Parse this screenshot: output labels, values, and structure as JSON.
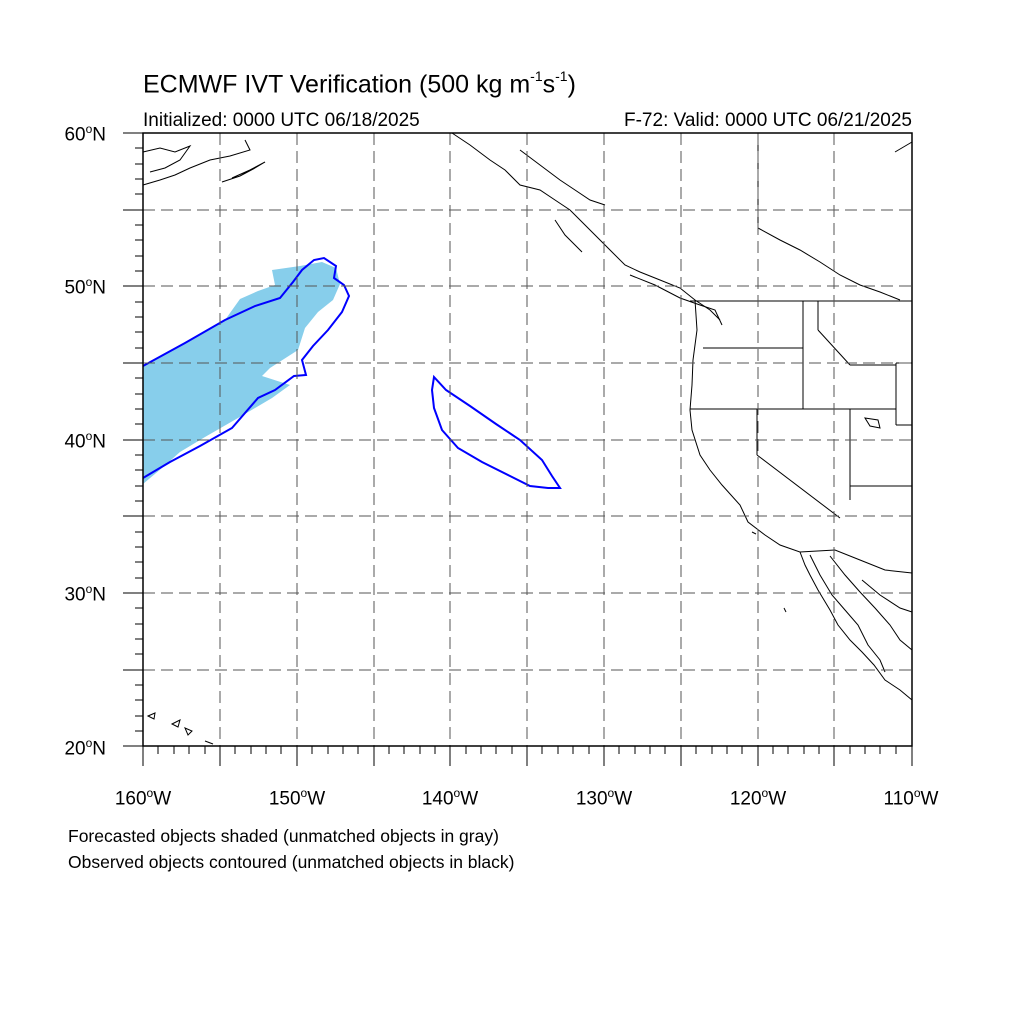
{
  "title": {
    "prefix": "ECMWF IVT Verification (500 kg m",
    "exp1": "-1",
    "mid": "s",
    "exp2": "-1",
    "suffix": ")"
  },
  "initialized": "Initialized: 0000 UTC 06/18/2025",
  "valid": "F-72: Valid: 0000 UTC 06/21/2025",
  "map": {
    "lon_range": [
      -160,
      -110
    ],
    "lat_range": [
      20,
      60
    ],
    "lat_labels": [
      {
        "value": 60,
        "text": "60",
        "hemi": "N"
      },
      {
        "value": 50,
        "text": "50",
        "hemi": "N"
      },
      {
        "value": 40,
        "text": "40",
        "hemi": "N"
      },
      {
        "value": 30,
        "text": "30",
        "hemi": "N"
      },
      {
        "value": 20,
        "text": "20",
        "hemi": "N"
      }
    ],
    "lon_labels": [
      {
        "value": -160,
        "text": "160",
        "hemi": "W"
      },
      {
        "value": -150,
        "text": "150",
        "hemi": "W"
      },
      {
        "value": -140,
        "text": "140",
        "hemi": "W"
      },
      {
        "value": -130,
        "text": "130",
        "hemi": "W"
      },
      {
        "value": -120,
        "text": "120",
        "hemi": "W"
      },
      {
        "value": -110,
        "text": "110",
        "hemi": "W"
      }
    ],
    "gridlines": "dashed every 5°",
    "forecast_fill_color": "#87ceeb",
    "observed_contour_color": "#0000ff",
    "coastline_color": "#000000"
  },
  "legend": {
    "line1": "Forecasted objects shaded (unmatched objects in gray)",
    "line2": "Observed objects contoured (unmatched objects in black)"
  }
}
